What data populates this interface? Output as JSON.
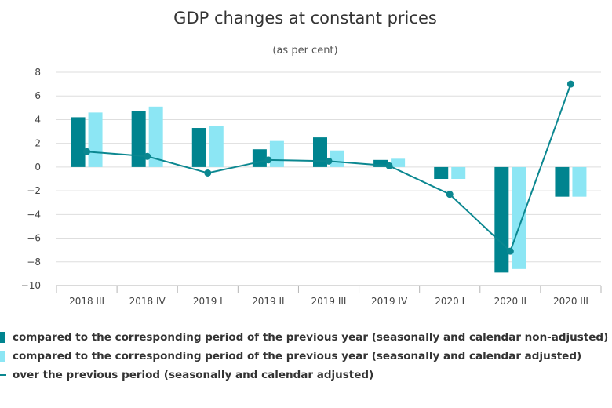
{
  "chart_data": {
    "type": "bar",
    "title": "GDP changes at constant prices",
    "subtitle": "(as per cent)",
    "categories": [
      "2018 III",
      "2018 IV",
      "2019 I",
      "2019 II",
      "2019 III",
      "2019 IV",
      "2020 I",
      "2020 II",
      "2020 III"
    ],
    "ylim": [
      -10,
      8
    ],
    "yticks": [
      8,
      6,
      4,
      2,
      0,
      -2,
      -4,
      -6,
      -8,
      -10
    ],
    "grid": true,
    "legend_position": "bottom-left",
    "series": [
      {
        "name": "compared to the corresponding period of the previous year (seasonally and calendar non-adjusted)",
        "type": "bar",
        "color": "#00848f",
        "values": [
          4.2,
          4.7,
          3.3,
          1.5,
          2.5,
          0.6,
          -1.0,
          -8.9,
          -2.5
        ]
      },
      {
        "name": "compared to the corresponding period of the previous year (seasonally and calendar adjusted)",
        "type": "bar",
        "color": "#8ce6f4",
        "values": [
          4.6,
          5.1,
          3.5,
          2.2,
          1.4,
          0.7,
          -1.0,
          -8.6,
          -2.5
        ]
      },
      {
        "name": "over the previous period (seasonally and calendar adjusted)",
        "type": "line",
        "color": "#0b8790",
        "values": [
          1.3,
          0.9,
          -0.5,
          0.6,
          0.5,
          0.1,
          -2.3,
          -7.1,
          7.0
        ]
      }
    ]
  }
}
